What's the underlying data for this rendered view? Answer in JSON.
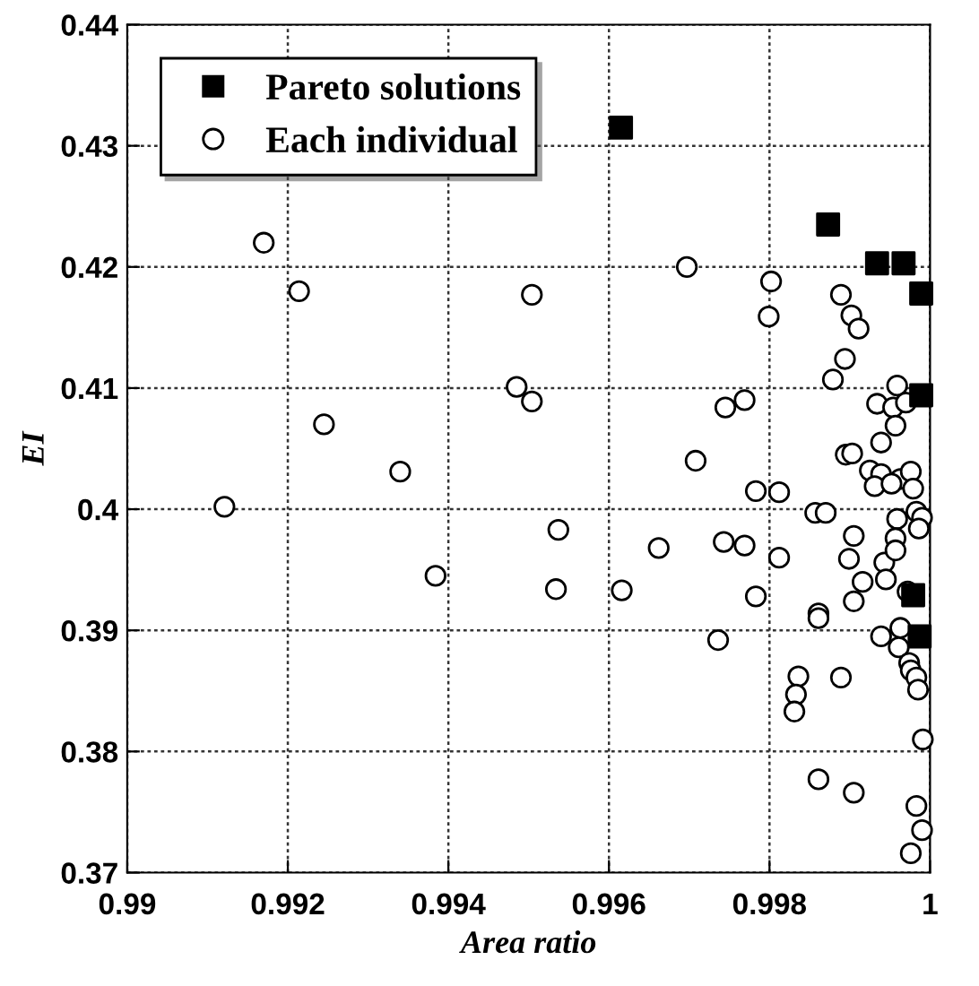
{
  "chart_data": {
    "type": "scatter",
    "xlabel": "Area ratio",
    "ylabel": "EI",
    "xlim": [
      0.99,
      1.0
    ],
    "ylim": [
      0.37,
      0.44
    ],
    "xticks": [
      0.99,
      0.992,
      0.994,
      0.996,
      0.998,
      1
    ],
    "yticks": [
      0.37,
      0.38,
      0.39,
      0.4,
      0.41,
      0.42,
      0.43,
      0.44
    ],
    "grid": true,
    "legend": "top left",
    "series": [
      {
        "name": "Each individual",
        "color": "#000000",
        "marker": "circle",
        "x": [
          0.9917,
          0.99214,
          0.99504,
          0.99485,
          0.99504,
          0.99245,
          0.9934,
          0.99121,
          0.99537,
          0.99384,
          0.99534,
          0.99697,
          0.99802,
          0.99799,
          0.99889,
          0.99902,
          0.99911,
          0.99894,
          0.99879,
          0.99959,
          0.99769,
          0.99745,
          0.99934,
          0.99954,
          0.9997,
          0.99957,
          0.99939,
          0.99895,
          0.99903,
          0.99708,
          0.99925,
          0.99939,
          0.99963,
          0.99976,
          0.99931,
          0.99952,
          0.99979,
          0.99783,
          0.99812,
          0.99857,
          0.9987,
          0.99983,
          0.9999,
          0.99959,
          0.99986,
          0.99662,
          0.99743,
          0.99769,
          0.99905,
          0.99957,
          0.99812,
          0.99899,
          0.99943,
          0.99957,
          0.99616,
          0.99783,
          0.99736,
          0.99861,
          0.99861,
          0.99905,
          0.99916,
          0.99945,
          0.99972,
          0.99939,
          0.99963,
          0.99961,
          0.99974,
          0.99976,
          0.99983,
          0.99985,
          0.99836,
          0.99833,
          0.99831,
          0.99889,
          0.99991,
          0.99861,
          0.99905,
          0.99983,
          0.9999,
          0.99976
        ],
        "values": [
          0.422,
          0.418,
          0.4177,
          0.4101,
          0.4089,
          0.407,
          0.4031,
          0.4002,
          0.3983,
          0.3945,
          0.3934,
          0.42,
          0.4188,
          0.4159,
          0.4177,
          0.416,
          0.4149,
          0.4124,
          0.4107,
          0.4102,
          0.409,
          0.4084,
          0.4087,
          0.4084,
          0.4088,
          0.4069,
          0.4055,
          0.4045,
          0.4046,
          0.404,
          0.4032,
          0.4029,
          0.4025,
          0.4031,
          0.4019,
          0.4021,
          0.4017,
          0.4015,
          0.4014,
          0.3997,
          0.3997,
          0.3998,
          0.3993,
          0.3992,
          0.3984,
          0.3968,
          0.3973,
          0.397,
          0.3978,
          0.3976,
          0.396,
          0.3959,
          0.3956,
          0.3966,
          0.3933,
          0.3928,
          0.3892,
          0.3914,
          0.391,
          0.3924,
          0.394,
          0.3942,
          0.3932,
          0.3895,
          0.3902,
          0.3886,
          0.3873,
          0.3867,
          0.3861,
          0.3851,
          0.3862,
          0.3847,
          0.3833,
          0.3861,
          0.381,
          0.3777,
          0.3766,
          0.3755,
          0.3735,
          0.3716
        ]
      },
      {
        "name": "Pareto solutions",
        "color": "#000000",
        "marker": "square",
        "x": [
          0.99615,
          0.99873,
          0.99934,
          0.99967,
          0.99989,
          0.99989,
          0.99979,
          0.99987
        ],
        "values": [
          0.4315,
          0.4235,
          0.4203,
          0.4203,
          0.4178,
          0.4094,
          0.3929,
          0.3895
        ]
      }
    ]
  }
}
